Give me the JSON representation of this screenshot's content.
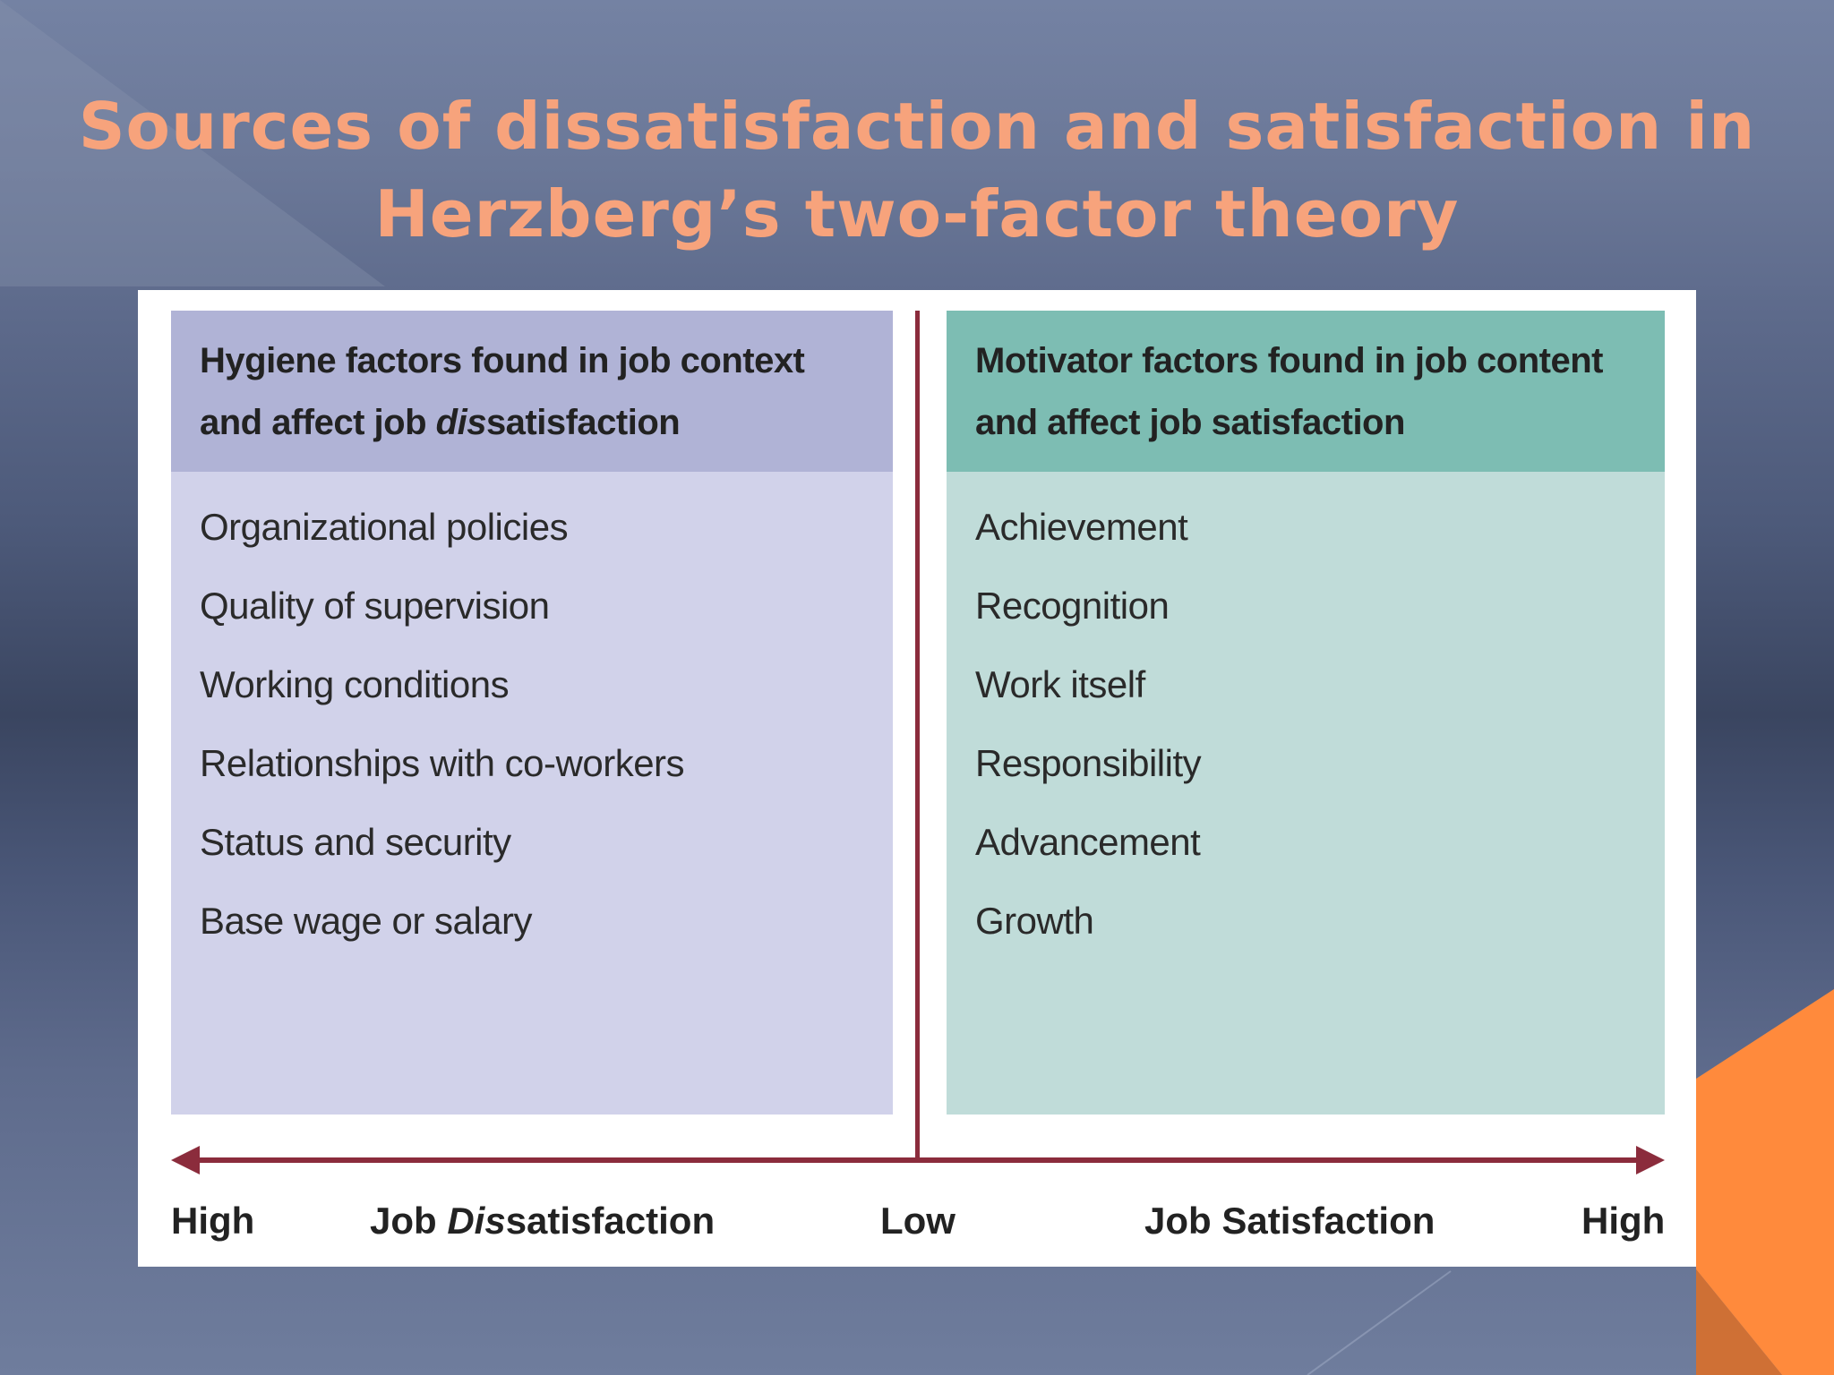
{
  "slide": {
    "title_line1": "Sources of dissatisfaction and satisfaction in",
    "title_line2": "Herzberg’s two-factor theory",
    "title_color": "#f7a37c",
    "accent_color": "#ff8a3c"
  },
  "hygiene": {
    "header_line1": "Hygiene factors found in job context",
    "header_line2_prefix": "and affect job ",
    "header_line2_italic": "dis",
    "header_line2_suffix": "satisfaction",
    "header_color": "#b0b3d6",
    "body_color": "#d1d2ea",
    "items": [
      "Organizational policies",
      "Quality of supervision",
      "Working conditions",
      "Relationships with co-workers",
      "Status and security",
      "Base wage or salary"
    ]
  },
  "motivator": {
    "header_line1": "Motivator factors found in job content",
    "header_line2": "and affect job satisfaction",
    "header_color": "#7dbdb3",
    "body_color": "#c0dcd9",
    "items": [
      "Achievement",
      "Recognition",
      "Work itself",
      "Responsibility",
      "Advancement",
      "Growth"
    ]
  },
  "axis": {
    "left_end": "High",
    "dissatisfaction_prefix": "Job ",
    "dissatisfaction_italic": "Dis",
    "dissatisfaction_suffix": "satisfaction",
    "center": "Low",
    "satisfaction_label": "Job Satisfaction",
    "right_end": "High",
    "line_color": "#8b2c3c"
  }
}
